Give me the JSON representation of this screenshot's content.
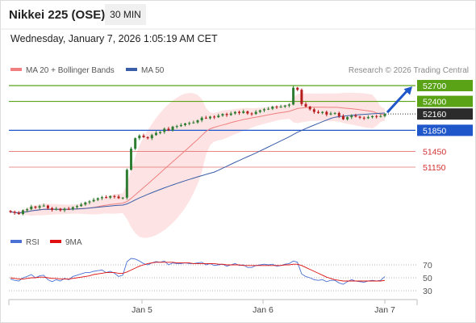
{
  "header": {
    "instrument": "Nikkei 225 (OSE)",
    "timeframe": "30 MIN",
    "datetime": "Wednesday, January 7, 2026 1:05:19 AM CET"
  },
  "legend": {
    "ma20_label": "MA 20 + Bollinger Bands",
    "ma50_label": "MA 50",
    "credit": "Research © 2026 Trading Central",
    "rsi_label": "RSI",
    "rsi_ma_label": "9MA"
  },
  "colors": {
    "up": "#2f7d32",
    "down": "#b71c1c",
    "ma20": "#f08080",
    "bollinger_fill": "#fde3e3",
    "ma50": "#3a5ea8",
    "resistance": "#5aa317",
    "support": "#e57373",
    "pivot": "#1f56c9",
    "rsi": "#4a72d4",
    "rsi_ma": "#e01010",
    "arrow": "#1f56c9"
  },
  "chart_data": [
    {
      "type": "candlestick",
      "x_ticks": [
        "Jan 5",
        "Jan 6",
        "Jan 7"
      ],
      "ylim": [
        50100,
        53000
      ],
      "current_price": 52160,
      "levels": [
        {
          "value": 52700,
          "label": "52700",
          "kind": "resistance"
        },
        {
          "value": 52400,
          "label": "52400",
          "kind": "resistance"
        },
        {
          "value": 52160,
          "label": "52160",
          "kind": "last"
        },
        {
          "value": 51850,
          "label": "51850",
          "kind": "pivot"
        },
        {
          "value": 51450,
          "label": "51450",
          "kind": "support"
        },
        {
          "value": 51150,
          "label": "51150",
          "kind": "support"
        }
      ],
      "forecast": {
        "from": 52160,
        "to": 52700,
        "direction": "up"
      },
      "series": [
        {
          "name": "MA 20 + Bollinger Bands"
        },
        {
          "name": "MA 50"
        }
      ],
      "closes": [
        50300,
        50280,
        50260,
        50330,
        50350,
        50400,
        50380,
        50410,
        50420,
        50370,
        50340,
        50360,
        50330,
        50360,
        50350,
        50390,
        50410,
        50440,
        50480,
        50500,
        50530,
        50560,
        50580,
        50570,
        50600,
        50590,
        50560,
        50570,
        51100,
        51500,
        51700,
        51750,
        51720,
        51700,
        51760,
        51800,
        51820,
        51880,
        51850,
        51920,
        51930,
        51950,
        51980,
        51990,
        52000,
        52040,
        52090,
        52080,
        52110,
        52100,
        52130,
        52160,
        52140,
        52170,
        52200,
        52180,
        52210,
        52170,
        52160,
        52200,
        52230,
        52250,
        52260,
        52300,
        52290,
        52300,
        52320,
        52340,
        52660,
        52620,
        52350,
        52300,
        52250,
        52200,
        52180,
        52200,
        52150,
        52170,
        52180,
        52120,
        52060,
        52100,
        52130,
        52110,
        52090,
        52080,
        52100,
        52120,
        52110,
        52120,
        52160
      ]
    },
    {
      "type": "line",
      "name": "RSI",
      "ylim": [
        20,
        80
      ],
      "y_ticks": [
        70,
        50,
        30
      ],
      "series": [
        {
          "name": "RSI",
          "values": [
            48,
            46,
            45,
            50,
            52,
            55,
            50,
            53,
            54,
            47,
            44,
            47,
            45,
            49,
            47,
            52,
            54,
            56,
            58,
            58,
            60,
            61,
            62,
            58,
            60,
            57,
            52,
            54,
            75,
            80,
            79,
            76,
            72,
            70,
            73,
            75,
            74,
            76,
            70,
            73,
            72,
            72,
            73,
            72,
            72,
            73,
            74,
            70,
            72,
            69,
            70,
            71,
            68,
            70,
            72,
            69,
            70,
            66,
            66,
            69,
            70,
            71,
            70,
            71,
            68,
            69,
            71,
            72,
            76,
            74,
            56,
            52,
            50,
            47,
            46,
            47,
            44,
            46,
            46,
            42,
            40,
            44,
            47,
            45,
            44,
            43,
            45,
            46,
            45,
            46,
            52
          ]
        },
        {
          "name": "9MA",
          "values": [
            50,
            49,
            48,
            48,
            49,
            50,
            50,
            51,
            51,
            50,
            49,
            49,
            48,
            48,
            48,
            49,
            50,
            51,
            52,
            53,
            55,
            56,
            57,
            58,
            58,
            58,
            57,
            57,
            59,
            62,
            65,
            68,
            70,
            72,
            73,
            74,
            74,
            74,
            74,
            74,
            73,
            73,
            73,
            73,
            72,
            72,
            72,
            72,
            72,
            72,
            71,
            71,
            70,
            70,
            70,
            70,
            69,
            69,
            69,
            69,
            69,
            69,
            69,
            69,
            69,
            69,
            70,
            70,
            71,
            71,
            69,
            66,
            63,
            60,
            57,
            54,
            51,
            49,
            47,
            46,
            45,
            45,
            45,
            45,
            45,
            45,
            45,
            45,
            45,
            45,
            46
          ]
        }
      ]
    }
  ]
}
